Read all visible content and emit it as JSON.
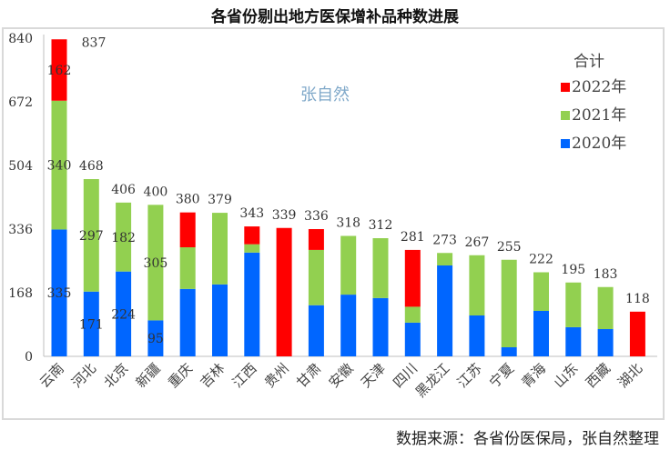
{
  "chart_data": {
    "type": "bar",
    "stacked": true,
    "title": "各省份剔出地方医保增补品种数进展",
    "source": "数据来源：各省份医保局，张自然整理",
    "legend_title": "合计",
    "legend_position": "top-right",
    "ylim": [
      0,
      840
    ],
    "yticks": [
      0,
      168,
      336,
      504,
      672,
      840
    ],
    "categories": [
      "云南",
      "河北",
      "北京",
      "新疆",
      "重庆",
      "吉林",
      "江西",
      "贵州",
      "甘肃",
      "安徽",
      "天津",
      "四川",
      "黑龙江",
      "江苏",
      "宁夏",
      "青海",
      "山东",
      "西藏",
      "湖北"
    ],
    "series": [
      {
        "name": "2020年",
        "color": "#0066ff",
        "values": [
          335,
          171,
          224,
          95,
          178,
          190,
          274,
          0,
          135,
          163,
          154,
          89,
          240,
          108,
          24,
          120,
          77,
          72,
          0
        ]
      },
      {
        "name": "2021年",
        "color": "#92d050",
        "values": [
          340,
          297,
          182,
          305,
          110,
          189,
          22,
          0,
          146,
          155,
          158,
          42,
          33,
          159,
          231,
          102,
          118,
          111,
          0
        ]
      },
      {
        "name": "2022年",
        "color": "#ff0000",
        "values": [
          162,
          0,
          0,
          0,
          92,
          0,
          47,
          339,
          55,
          0,
          0,
          150,
          0,
          0,
          0,
          0,
          0,
          0,
          118
        ]
      }
    ],
    "totals": [
      837,
      468,
      406,
      400,
      380,
      379,
      343,
      339,
      336,
      318,
      312,
      281,
      273,
      267,
      255,
      222,
      195,
      183,
      118
    ],
    "segment_labels": [
      {
        "category": "云南",
        "series": "2020年",
        "text": "335"
      },
      {
        "category": "云南",
        "series": "2021年",
        "text": "340"
      },
      {
        "category": "云南",
        "series": "2022年",
        "text": "162"
      },
      {
        "category": "河北",
        "series": "2020年",
        "text": "171"
      },
      {
        "category": "河北",
        "series": "2021年",
        "text": "297"
      },
      {
        "category": "北京",
        "series": "2020年",
        "text": "224"
      },
      {
        "category": "北京",
        "series": "2021年",
        "text": "182"
      },
      {
        "category": "新疆",
        "series": "2020年",
        "text": "95"
      },
      {
        "category": "新疆",
        "series": "2021年",
        "text": "305"
      }
    ],
    "watermark": "张自然"
  }
}
